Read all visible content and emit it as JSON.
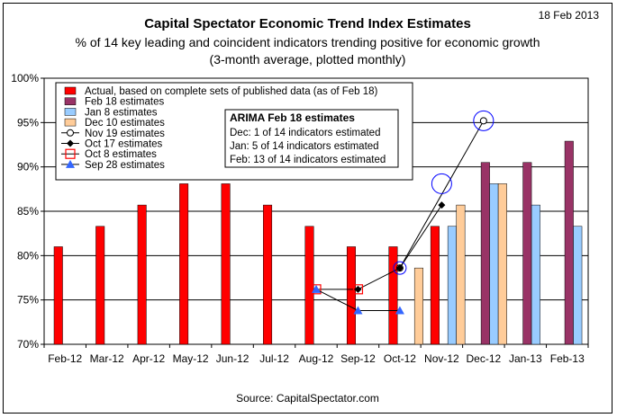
{
  "header": {
    "title": "Capital Spectator Economic Trend Index Estimates",
    "subtitle_line1": "% of 14 key leading and coincident indicators trending positive for economic growth",
    "subtitle_line2": "(3-month average, plotted monthly)",
    "date": "18 Feb 2013"
  },
  "footer": {
    "source": "Source: CapitalSpectator.com"
  },
  "colors": {
    "actual": "#ff0000",
    "feb18": "#993366",
    "jan8": "#99ccff",
    "dec10": "#ffcc99",
    "nov19": "#ffffff",
    "oct17": "#000000",
    "oct8": "#ff0000",
    "sep28": "#3366ff",
    "circle": "#0000ff"
  },
  "chart_data": {
    "type": "bar",
    "categories": [
      "Feb-12",
      "Mar-12",
      "Apr-12",
      "May-12",
      "Jun-12",
      "Jul-12",
      "Aug-12",
      "Sep-12",
      "Oct-12",
      "Nov-12",
      "Dec-12",
      "Jan-13",
      "Feb-13"
    ],
    "ylim": [
      70,
      100
    ],
    "yticks": [
      "70%",
      "75%",
      "80%",
      "85%",
      "90%",
      "95%",
      "100%"
    ],
    "bar_series": [
      {
        "name": "Actual, based on complete sets of published data (as of Feb 18)",
        "key": "actual",
        "values": [
          81,
          83.3,
          85.7,
          88.1,
          88.1,
          85.7,
          83.3,
          81,
          81,
          83.3,
          null,
          null,
          null
        ]
      },
      {
        "name": "Feb 18 estimates",
        "key": "feb18",
        "values": [
          null,
          null,
          null,
          null,
          null,
          null,
          null,
          null,
          null,
          null,
          90.5,
          90.5,
          92.9
        ]
      },
      {
        "name": "Jan 8 estimates",
        "key": "jan8",
        "values": [
          null,
          null,
          null,
          null,
          null,
          null,
          null,
          null,
          null,
          83.3,
          88.1,
          85.7,
          83.3
        ]
      },
      {
        "name": "Dec 10 estimates",
        "key": "dec10",
        "values": [
          null,
          null,
          null,
          null,
          null,
          null,
          null,
          null,
          78.6,
          85.7,
          88.1,
          null,
          null
        ]
      }
    ],
    "line_series": [
      {
        "name": "Nov 19 estimates",
        "key": "nov19",
        "marker": "circle-open",
        "points": [
          [
            8,
            78.6
          ],
          [
            10,
            95.2
          ]
        ]
      },
      {
        "name": "Oct 17 estimates",
        "key": "oct17",
        "marker": "diamond",
        "points": [
          [
            7,
            76.2
          ],
          [
            8,
            78.6
          ],
          [
            9,
            85.7
          ]
        ]
      },
      {
        "name": "Oct 8 estimates",
        "key": "oct8",
        "marker": "square-open",
        "points": [
          [
            6,
            76.2
          ],
          [
            7,
            76.2
          ]
        ]
      },
      {
        "name": "Sep 28 estimates",
        "key": "sep28",
        "marker": "triangle",
        "points": [
          [
            6,
            76.2
          ],
          [
            7,
            73.8
          ],
          [
            8,
            73.8
          ]
        ]
      }
    ],
    "highlight_circles": [
      [
        8,
        78.6
      ],
      [
        9,
        88.1
      ],
      [
        10,
        95.2
      ]
    ],
    "legend_placement": "top-left",
    "grid": "horizontal",
    "annotation": {
      "title": "ARIMA Feb 18 estimates",
      "lines": [
        "Dec:  1 of 14 indicators estimated",
        "Jan:  5 of 14 indicators estimated",
        "Feb: 13 of 14 indicators estimated"
      ]
    }
  }
}
